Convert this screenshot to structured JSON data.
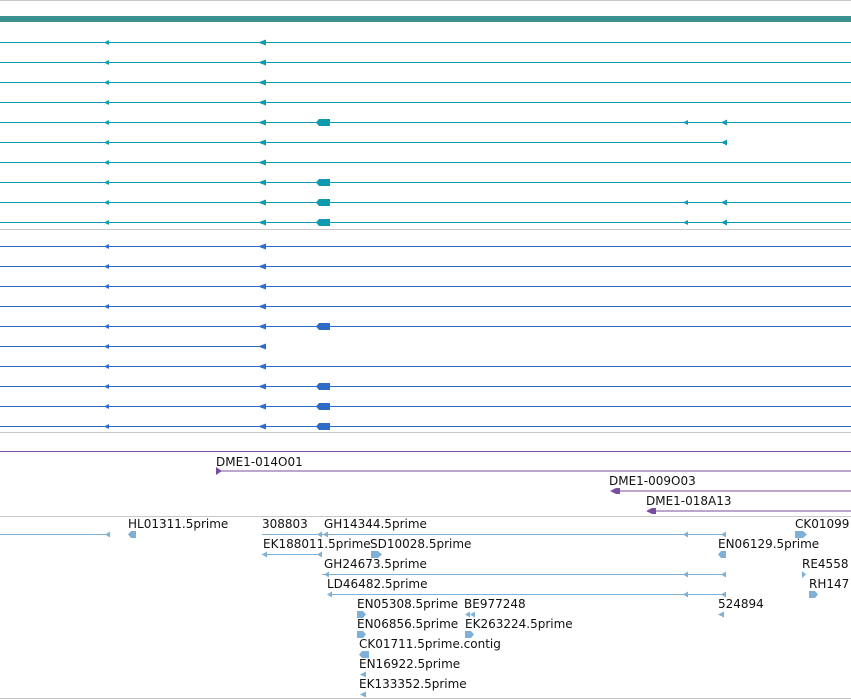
{
  "colors": {
    "background": "#ffffff",
    "separator": "#c8c8c8",
    "gene_bar": "#3a8f8f",
    "transcript_teal": "#0e9aae",
    "transcript_blue": "#2f6cc8",
    "oligo_purple": "#7a4e9e",
    "est_lightblue": "#7fb0d8",
    "label_text": "#111111"
  },
  "track_teal": {
    "row_count": 10,
    "row_features": [
      "c2",
      "c2",
      "c2",
      "c2",
      "c2_ext_end",
      "c2_end",
      "c2",
      "c2_ext",
      "c2_ext_end",
      "c2_ext_end"
    ]
  },
  "track_blue": {
    "row_count": 10,
    "row_features": [
      "c2",
      "c2",
      "c2",
      "c2",
      "c2_ext",
      "c2_short",
      "c2",
      "c2_ext",
      "c2_ext",
      "c2_ext"
    ]
  },
  "track_oligos": {
    "labels": [
      "DME1-014O01",
      "DME1-009O03",
      "DME1-018A13"
    ]
  },
  "track_ests": {
    "labels": [
      "HL01311.5prime",
      "308803",
      "GH14344.5prime",
      "CK01099",
      "EK188011.5prime",
      "SD10028.5prime",
      "EN06129.5prime",
      "GH24673.5prime",
      "RE4558",
      "LD46482.5prime",
      "RH147",
      "EN05308.5prime",
      "BE977248",
      "524894",
      "EN06856.5prime",
      "EK263224.5prime",
      "CK01711.5prime.contig",
      "EN16922.5prime",
      "EK133352.5prime"
    ]
  }
}
